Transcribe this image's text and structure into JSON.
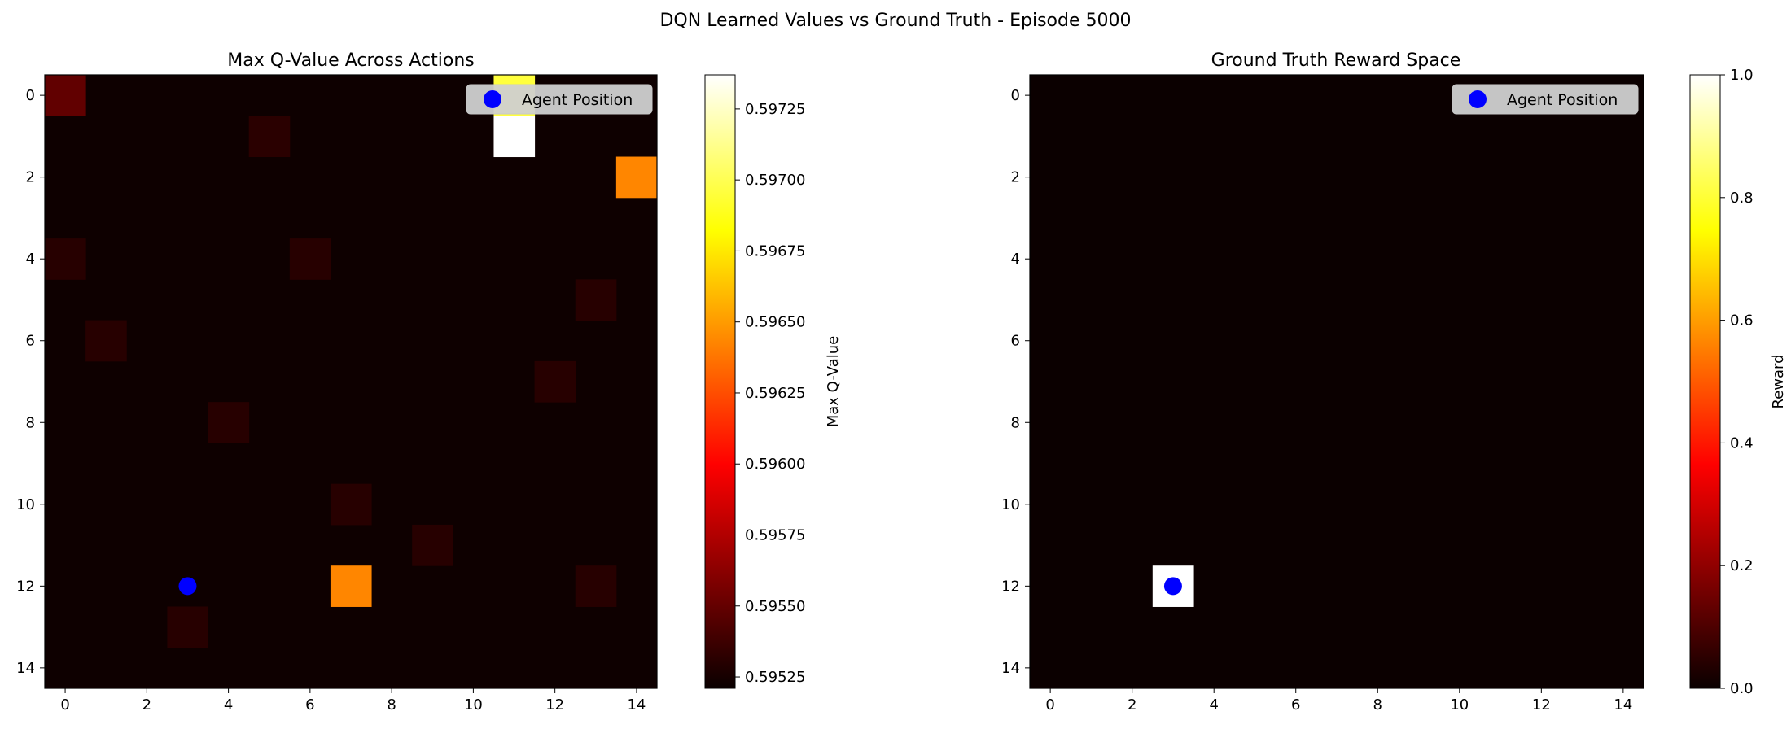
{
  "suptitle": "DQN Learned Values vs Ground Truth - Episode 5000",
  "chart_data": [
    {
      "type": "heatmap",
      "title": "Max Q-Value Across Actions",
      "colormap": "hot",
      "grid_size": 15,
      "x_ticks": [
        0,
        2,
        4,
        6,
        8,
        10,
        12,
        14
      ],
      "y_ticks": [
        0,
        2,
        4,
        6,
        8,
        10,
        12,
        14
      ],
      "baseline": 0.59522,
      "vmin": 0.59521,
      "vmax": 0.59737,
      "cells": [
        {
          "row": 0,
          "col": 0,
          "value": 0.59549
        },
        {
          "row": 0,
          "col": 11,
          "value": 0.59695
        },
        {
          "row": 1,
          "col": 5,
          "value": 0.59531
        },
        {
          "row": 1,
          "col": 11,
          "value": 0.59737
        },
        {
          "row": 2,
          "col": 14,
          "value": 0.59643
        },
        {
          "row": 4,
          "col": 0,
          "value": 0.5953
        },
        {
          "row": 4,
          "col": 6,
          "value": 0.5953
        },
        {
          "row": 5,
          "col": 13,
          "value": 0.5953
        },
        {
          "row": 6,
          "col": 1,
          "value": 0.5953
        },
        {
          "row": 7,
          "col": 12,
          "value": 0.5953
        },
        {
          "row": 8,
          "col": 4,
          "value": 0.5953
        },
        {
          "row": 10,
          "col": 7,
          "value": 0.5953
        },
        {
          "row": 11,
          "col": 9,
          "value": 0.5953
        },
        {
          "row": 12,
          "col": 7,
          "value": 0.59643
        },
        {
          "row": 12,
          "col": 13,
          "value": 0.5953
        },
        {
          "row": 13,
          "col": 3,
          "value": 0.5953
        }
      ],
      "colorbar": {
        "label": "Max Q-Value",
        "ticks": [
          0.59525,
          0.5955,
          0.59575,
          0.596,
          0.59625,
          0.5965,
          0.59675,
          0.597,
          0.59725
        ],
        "tick_labels": [
          "0.59525",
          "0.59550",
          "0.59575",
          "0.59600",
          "0.59625",
          "0.59650",
          "0.59675",
          "0.59700",
          "0.59725"
        ]
      },
      "agent": {
        "row": 12,
        "col": 3
      },
      "legend": {
        "label": "Agent Position",
        "placement": "upper right"
      }
    },
    {
      "type": "heatmap",
      "title": "Ground Truth Reward Space",
      "colormap": "hot",
      "grid_size": 15,
      "x_ticks": [
        0,
        2,
        4,
        6,
        8,
        10,
        12,
        14
      ],
      "y_ticks": [
        0,
        2,
        4,
        6,
        8,
        10,
        12,
        14
      ],
      "baseline": 0.0,
      "vmin": 0.0,
      "vmax": 1.0,
      "cells": [
        {
          "row": 12,
          "col": 3,
          "value": 1.0
        }
      ],
      "colorbar": {
        "label": "Reward",
        "ticks": [
          0.0,
          0.2,
          0.4,
          0.6,
          0.8,
          1.0
        ],
        "tick_labels": [
          "0.0",
          "0.2",
          "0.4",
          "0.6",
          "0.8",
          "1.0"
        ]
      },
      "agent": {
        "row": 12,
        "col": 3
      },
      "legend": {
        "label": "Agent Position",
        "placement": "upper right"
      }
    }
  ],
  "colors": {
    "agent_marker": "#0000ff",
    "legend_bg": "#d0d0d0"
  }
}
